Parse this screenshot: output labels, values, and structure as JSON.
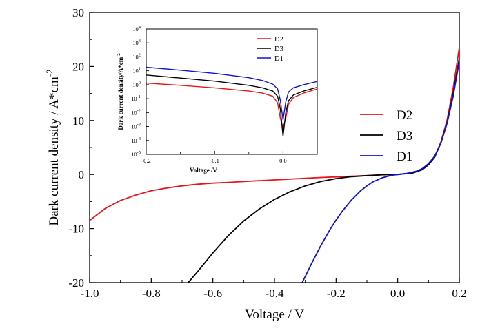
{
  "chart_data": [
    {
      "type": "line",
      "xlabel": "Voltage / V",
      "ylabel": "Dark current density / A*cm",
      "ylabel_sup": "-2",
      "xlim": [
        -1.0,
        0.2
      ],
      "ylim": [
        -20,
        30
      ],
      "xticks": [
        -1.0,
        -0.8,
        -0.6,
        -0.4,
        -0.2,
        0.0,
        0.2
      ],
      "xtick_labels": [
        "-1.0",
        "-0.8",
        "-0.6",
        "-0.4",
        "-0.2",
        "0.0",
        "0.2"
      ],
      "yticks": [
        -20,
        -10,
        0,
        10,
        20,
        30
      ],
      "ytick_labels": [
        "-20",
        "-10",
        "0",
        "10",
        "20",
        "30"
      ],
      "legend_position": "right",
      "series": [
        {
          "name": "D2",
          "color": "#e8141c",
          "x": [
            -1.0,
            -0.95,
            -0.9,
            -0.85,
            -0.8,
            -0.75,
            -0.7,
            -0.65,
            -0.6,
            -0.55,
            -0.5,
            -0.45,
            -0.4,
            -0.35,
            -0.3,
            -0.25,
            -0.2,
            -0.15,
            -0.1,
            -0.05,
            0.0,
            0.05,
            0.08,
            0.1,
            0.12,
            0.14,
            0.16,
            0.18,
            0.2
          ],
          "y": [
            -8.5,
            -6.3,
            -4.8,
            -3.8,
            -3.0,
            -2.5,
            -2.1,
            -1.8,
            -1.6,
            -1.45,
            -1.3,
            -1.15,
            -1.0,
            -0.85,
            -0.7,
            -0.55,
            -0.45,
            -0.3,
            -0.2,
            -0.05,
            0.0,
            0.3,
            0.9,
            1.8,
            3.3,
            6.0,
            10.0,
            16.0,
            23.5
          ]
        },
        {
          "name": "D3",
          "color": "#000000",
          "x": [
            -0.68,
            -0.65,
            -0.6,
            -0.55,
            -0.5,
            -0.45,
            -0.4,
            -0.35,
            -0.3,
            -0.25,
            -0.2,
            -0.15,
            -0.1,
            -0.05,
            0.0,
            0.05,
            0.08,
            0.1,
            0.12,
            0.14,
            0.16,
            0.18,
            0.2
          ],
          "y": [
            -20.0,
            -18.0,
            -14.5,
            -11.3,
            -8.6,
            -6.4,
            -4.6,
            -3.2,
            -2.1,
            -1.3,
            -0.75,
            -0.4,
            -0.2,
            -0.05,
            0.0,
            0.3,
            0.9,
            1.8,
            3.2,
            5.8,
            9.5,
            15.0,
            21.5
          ]
        },
        {
          "name": "D1",
          "color": "#1010d8",
          "x": [
            -0.31,
            -0.28,
            -0.25,
            -0.22,
            -0.2,
            -0.18,
            -0.15,
            -0.12,
            -0.1,
            -0.08,
            -0.05,
            -0.02,
            0.0,
            0.03,
            0.06,
            0.08,
            0.1,
            0.12,
            0.14,
            0.16,
            0.18,
            0.2
          ],
          "y": [
            -20.0,
            -16.5,
            -13.2,
            -10.2,
            -8.4,
            -6.8,
            -4.7,
            -3.0,
            -2.1,
            -1.35,
            -0.6,
            -0.15,
            0.0,
            0.2,
            0.6,
            1.1,
            2.0,
            3.4,
            5.8,
            9.4,
            14.5,
            21.0
          ]
        }
      ]
    },
    {
      "type": "line",
      "xlabel": "Voltage /V",
      "ylabel": "Dark current density/A*cm",
      "ylabel_sup": "-2",
      "xlim": [
        -0.2,
        0.05
      ],
      "ylim_log10": [
        -5,
        4
      ],
      "y_scale": "log",
      "xticks": [
        -0.2,
        -0.1,
        0.0
      ],
      "xtick_labels": [
        "-0.2",
        "-0.1",
        "0.0"
      ],
      "ytick_exponents": [
        "-5",
        "-4",
        "-3",
        "-2",
        "-1",
        "0",
        "1",
        "2",
        "3",
        "4"
      ],
      "ytick_base": "10",
      "legend_position": "top-right",
      "series": [
        {
          "name": "D2",
          "color": "#e8141c",
          "x": [
            -0.2,
            -0.15,
            -0.1,
            -0.05,
            -0.03,
            -0.015,
            -0.008,
            -0.004,
            0.0,
            0.004,
            0.008,
            0.015,
            0.03,
            0.05
          ],
          "y": [
            1.3,
            0.9,
            0.6,
            0.35,
            0.25,
            0.15,
            0.05,
            0.004,
            0.0008,
            0.004,
            0.04,
            0.12,
            0.25,
            0.5
          ]
        },
        {
          "name": "D3",
          "color": "#000000",
          "x": [
            -0.2,
            -0.15,
            -0.1,
            -0.05,
            -0.03,
            -0.015,
            -0.008,
            -0.004,
            0.0,
            0.004,
            0.008,
            0.015,
            0.03,
            0.05
          ],
          "y": [
            5.0,
            3.0,
            1.8,
            0.9,
            0.6,
            0.35,
            0.15,
            0.02,
            0.0002,
            0.01,
            0.07,
            0.18,
            0.35,
            0.65
          ]
        },
        {
          "name": "D1",
          "color": "#1010d8",
          "x": [
            -0.2,
            -0.15,
            -0.1,
            -0.05,
            -0.03,
            -0.015,
            -0.008,
            -0.004,
            0.0,
            0.004,
            0.008,
            0.015,
            0.03,
            0.05
          ],
          "y": [
            18.0,
            11.0,
            6.5,
            3.2,
            2.0,
            1.1,
            0.5,
            0.08,
            0.003,
            0.06,
            0.3,
            0.6,
            1.0,
            1.7
          ]
        }
      ]
    }
  ]
}
